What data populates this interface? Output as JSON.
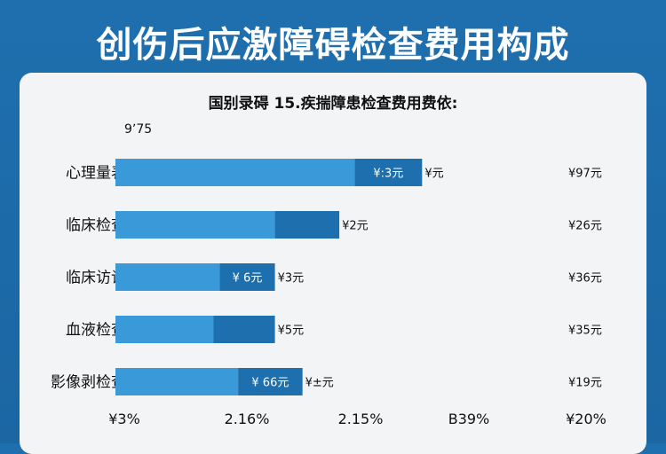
{
  "header": {
    "title": "创伤后应激障碍检查费用构成"
  },
  "chart_data": {
    "type": "bar",
    "orientation": "horizontal",
    "stacked": true,
    "title": "国别录碍 15.疾揣障患检查费用费依:",
    "corner_label": "9ʼ75",
    "categories": [
      "心理量表",
      "临床检查",
      "临床访谈",
      "血液检查",
      "影像剥检查"
    ],
    "series": [
      {
        "color": "#3a9ad9",
        "values": [
          78,
          52,
          34,
          32,
          40
        ]
      },
      {
        "color": "#1e6fad",
        "values": [
          22,
          21,
          18,
          20,
          21
        ]
      }
    ],
    "inner_labels": [
      "¥:3元",
      "",
      "¥ 6元",
      "",
      "¥ 66元"
    ],
    "end_labels": [
      "¥元",
      "¥2元",
      "¥3元",
      "¥5元",
      "¥±元"
    ],
    "right_labels": [
      "¥97元",
      "¥26元",
      "¥36元",
      "¥35元",
      "¥19元"
    ],
    "x_tick_labels": [
      "¥3%",
      "2.16%",
      "2.15%",
      "B39%",
      "¥20%"
    ],
    "xlim": [
      0,
      132
    ],
    "grid": false,
    "legend": "none"
  }
}
